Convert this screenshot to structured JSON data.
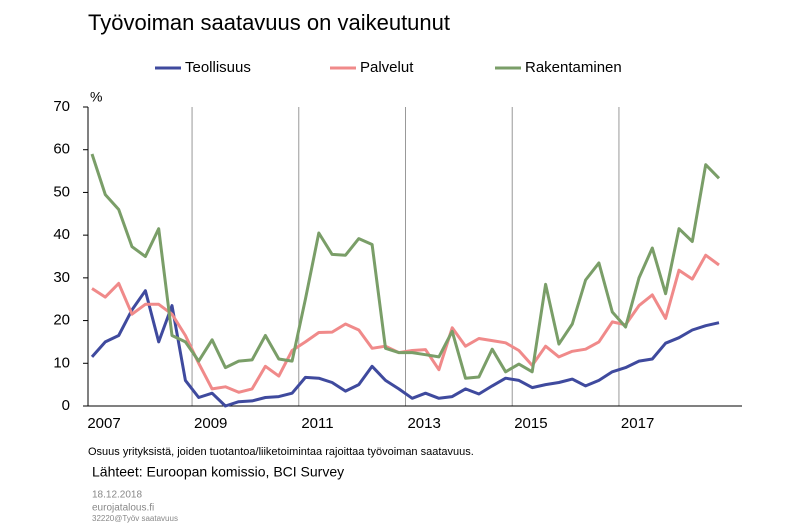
{
  "chart_data": {
    "type": "line",
    "title": "Työvoiman saatavuus on vaikeutunut",
    "y_unit": "%",
    "categories": [
      "2007",
      null,
      null,
      null,
      null,
      null,
      null,
      null,
      "2009",
      null,
      null,
      null,
      null,
      null,
      null,
      null,
      "2011",
      null,
      null,
      null,
      null,
      null,
      null,
      null,
      "2013",
      null,
      null,
      null,
      null,
      null,
      null,
      null,
      "2015",
      null,
      null,
      null,
      null,
      null,
      null,
      null,
      "2017",
      null,
      null,
      null,
      null,
      null,
      null,
      null
    ],
    "ylim": [
      0,
      70
    ],
    "yticks": [
      0,
      10,
      20,
      30,
      40,
      50,
      60,
      70
    ],
    "series": [
      {
        "name": "Teollisuus",
        "color": "#3f4a9e",
        "values": [
          11.5,
          15,
          16.5,
          22.5,
          27,
          15,
          23.5,
          6,
          2,
          3,
          0,
          1,
          1.2,
          2,
          2.2,
          3,
          6.7,
          6.5,
          5.5,
          3.5,
          5,
          9.3,
          6,
          4,
          1.8,
          3,
          1.8,
          2.2,
          4,
          2.8,
          4.7,
          6.5,
          6,
          4.3,
          5,
          5.5,
          6.3,
          4.7,
          6,
          8,
          9,
          10.5,
          11,
          14.7,
          16,
          17.8,
          18.8,
          19.5
        ]
      },
      {
        "name": "Palvelut",
        "color": "#f08a8a",
        "values": [
          27.5,
          25.5,
          28.7,
          21.5,
          23.8,
          23.8,
          21.5,
          16.5,
          10,
          4,
          4.5,
          3.2,
          4,
          9.3,
          7,
          13,
          15,
          17.2,
          17.3,
          19.2,
          17.8,
          13.5,
          14,
          12.5,
          13,
          13.2,
          8.5,
          18.3,
          14,
          15.8,
          15.3,
          14.8,
          13,
          9.5,
          14,
          11.5,
          12.8,
          13.3,
          15,
          19.7,
          19,
          23.5,
          26,
          20.5,
          31.8,
          29.7,
          35.3,
          33
        ]
      },
      {
        "name": "Rakentaminen",
        "color": "#7a9e68",
        "values": [
          59,
          49.5,
          46,
          37.3,
          35,
          41.5,
          16.5,
          15,
          10.5,
          15.5,
          9,
          10.5,
          10.8,
          16.5,
          11,
          10.5,
          25,
          40.5,
          35.5,
          35.3,
          39.2,
          37.8,
          13.5,
          12.5,
          12.5,
          12,
          11.5,
          17.5,
          6.5,
          6.8,
          13.3,
          8,
          9.8,
          8,
          28.5,
          14.5,
          19.2,
          29.5,
          33.5,
          22,
          18.5,
          30,
          37,
          26.3,
          41.5,
          38.5,
          56.5,
          53.3
        ]
      }
    ]
  },
  "notes": {
    "footnote": "Osuus yrityksistä,  joiden tuotantoa/liiketoimintaa  rajoittaa  työvoiman  saatavuus.",
    "sources": "Lähteet: Euroopan komissio, BCI Survey",
    "date": "18.12.2018",
    "site": "eurojatalous.fi",
    "code": "32220@Työv  saatavuus"
  }
}
